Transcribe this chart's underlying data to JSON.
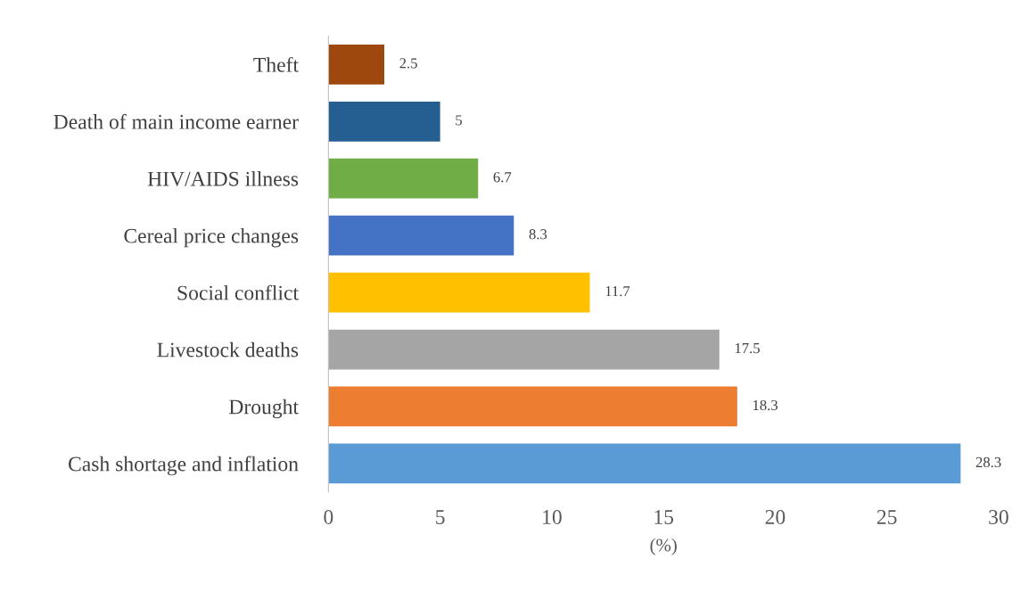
{
  "chart_data": {
    "type": "bar",
    "orientation": "horizontal",
    "xlabel": "(%)",
    "categories": [
      "Theft",
      "Death of main income earner",
      "HIV/AIDS illness",
      "Cereal price changes",
      "Social conflict",
      "Livestock deaths",
      "Drought",
      "Cash shortage and inflation"
    ],
    "values": [
      2.5,
      5,
      6.7,
      8.3,
      11.7,
      17.5,
      18.3,
      28.3
    ],
    "colors": [
      "#9e480e",
      "#255e91",
      "#70ad47",
      "#4472c4",
      "#ffc000",
      "#a5a5a5",
      "#ed7d31",
      "#5b9bd5"
    ],
    "xlim": [
      0,
      30
    ],
    "xticks": [
      0,
      5,
      10,
      15,
      20,
      25,
      30
    ],
    "data_labels": true,
    "grid": false,
    "legend": false
  }
}
